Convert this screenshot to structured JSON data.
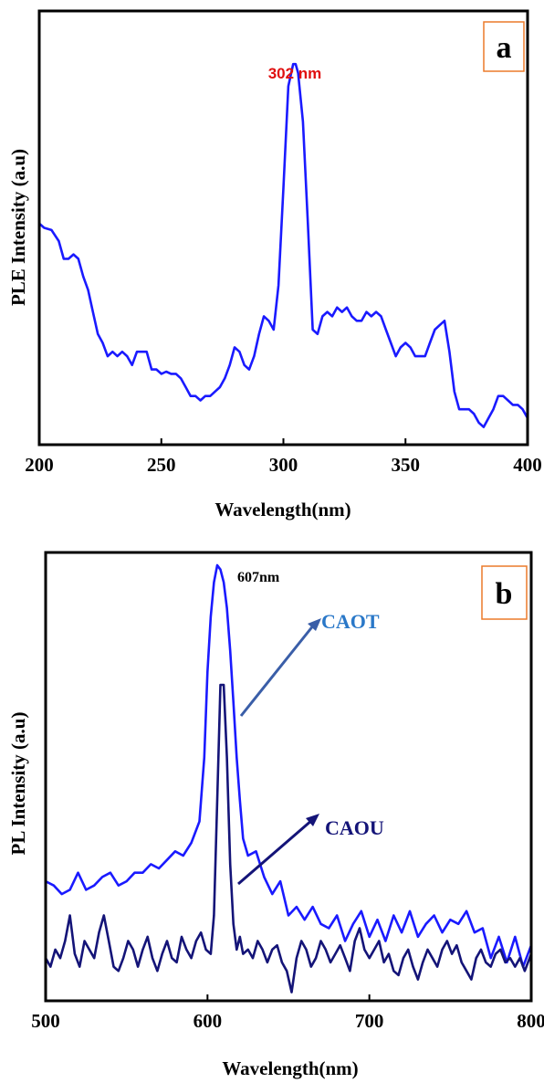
{
  "chart_data": [
    {
      "panel": "a",
      "type": "line",
      "xlabel": "Wavelength(nm)",
      "ylabel": "PLE Intensity (a.u)",
      "xlim": [
        200,
        400
      ],
      "ylim": [
        0,
        1
      ],
      "yticks_shown": false,
      "xticks": [
        200,
        250,
        300,
        350,
        400
      ],
      "annotation": {
        "text": "302 nm",
        "x": 305,
        "color": "#e01010"
      },
      "colors": {
        "line": "#1a1aff"
      },
      "series": [
        {
          "x": [
            200,
            202,
            205,
            208,
            210,
            212,
            214,
            216,
            218,
            220,
            222,
            224,
            226,
            228,
            230,
            232,
            234,
            236,
            238,
            240,
            242,
            244,
            246,
            248,
            250,
            252,
            254,
            256,
            258,
            260,
            262,
            264,
            266,
            268,
            270,
            272,
            274,
            276,
            278,
            280,
            282,
            284,
            286,
            288,
            290,
            292,
            294,
            296,
            298,
            300,
            302,
            304,
            305,
            306,
            308,
            310,
            312,
            314,
            316,
            318,
            320,
            322,
            324,
            326,
            328,
            330,
            332,
            334,
            336,
            338,
            340,
            342,
            344,
            346,
            348,
            350,
            352,
            354,
            356,
            358,
            360,
            362,
            364,
            366,
            368,
            370,
            372,
            374,
            376,
            378,
            380,
            382,
            384,
            386,
            388,
            390,
            392,
            394,
            396,
            398,
            400
          ],
          "values": [
            0.57,
            0.56,
            0.555,
            0.53,
            0.49,
            0.49,
            0.5,
            0.49,
            0.45,
            0.42,
            0.37,
            0.32,
            0.3,
            0.27,
            0.28,
            0.27,
            0.28,
            0.27,
            0.25,
            0.28,
            0.28,
            0.28,
            0.24,
            0.24,
            0.23,
            0.235,
            0.23,
            0.23,
            0.22,
            0.2,
            0.18,
            0.18,
            0.17,
            0.18,
            0.18,
            0.19,
            0.2,
            0.22,
            0.25,
            0.29,
            0.28,
            0.25,
            0.24,
            0.27,
            0.32,
            0.36,
            0.35,
            0.33,
            0.43,
            0.65,
            0.88,
            0.93,
            0.93,
            0.91,
            0.8,
            0.57,
            0.33,
            0.32,
            0.36,
            0.37,
            0.36,
            0.38,
            0.37,
            0.38,
            0.36,
            0.35,
            0.35,
            0.37,
            0.36,
            0.37,
            0.36,
            0.33,
            0.3,
            0.27,
            0.29,
            0.3,
            0.29,
            0.27,
            0.27,
            0.27,
            0.3,
            0.33,
            0.34,
            0.35,
            0.28,
            0.19,
            0.15,
            0.15,
            0.15,
            0.14,
            0.12,
            0.11,
            0.13,
            0.15,
            0.18,
            0.18,
            0.17,
            0.16,
            0.16,
            0.15,
            0.13
          ]
        }
      ]
    },
    {
      "panel": "b",
      "type": "line",
      "xlabel": "Wavelength(nm)",
      "ylabel": "PL Intensity (a.u)",
      "xlim": [
        500,
        800
      ],
      "ylim": [
        0,
        1
      ],
      "yticks_shown": false,
      "xticks": [
        500,
        600,
        700,
        800
      ],
      "annotation": {
        "text": "607nm",
        "x": 607
      },
      "colors": {
        "caot": "#1a1aff",
        "caou": "#141478",
        "caot_label": "#2a78c8",
        "caou_label": "#141478",
        "caot_arrow": "#3a5ea8",
        "caou_arrow": "#141478"
      },
      "series": [
        {
          "name": "CAOT",
          "x": [
            500,
            505,
            510,
            515,
            520,
            525,
            530,
            535,
            540,
            545,
            550,
            555,
            560,
            565,
            570,
            575,
            580,
            585,
            590,
            595,
            598,
            600,
            602,
            604,
            606,
            608,
            610,
            612,
            614,
            616,
            618,
            620,
            622,
            625,
            630,
            635,
            640,
            645,
            650,
            655,
            660,
            665,
            670,
            675,
            680,
            685,
            690,
            695,
            700,
            705,
            710,
            715,
            720,
            725,
            730,
            735,
            740,
            745,
            750,
            755,
            760,
            765,
            770,
            775,
            780,
            785,
            790,
            795,
            800
          ],
          "values": [
            0.26,
            0.25,
            0.23,
            0.24,
            0.28,
            0.24,
            0.25,
            0.27,
            0.28,
            0.25,
            0.26,
            0.28,
            0.28,
            0.3,
            0.29,
            0.31,
            0.33,
            0.32,
            0.35,
            0.4,
            0.55,
            0.75,
            0.88,
            0.96,
            1.0,
            0.99,
            0.96,
            0.9,
            0.8,
            0.68,
            0.55,
            0.45,
            0.36,
            0.32,
            0.33,
            0.27,
            0.23,
            0.26,
            0.18,
            0.2,
            0.17,
            0.2,
            0.16,
            0.15,
            0.18,
            0.12,
            0.16,
            0.19,
            0.13,
            0.17,
            0.12,
            0.18,
            0.14,
            0.19,
            0.13,
            0.16,
            0.18,
            0.14,
            0.17,
            0.16,
            0.19,
            0.14,
            0.15,
            0.08,
            0.13,
            0.07,
            0.13,
            0.06,
            0.11
          ]
        },
        {
          "name": "CAOU",
          "x": [
            500,
            503,
            506,
            509,
            512,
            515,
            518,
            521,
            524,
            527,
            530,
            533,
            536,
            539,
            542,
            545,
            548,
            551,
            554,
            557,
            560,
            563,
            566,
            569,
            572,
            575,
            578,
            581,
            584,
            587,
            590,
            593,
            596,
            599,
            602,
            604,
            606,
            608,
            610,
            612,
            614,
            616,
            618,
            620,
            622,
            625,
            628,
            631,
            634,
            637,
            640,
            643,
            646,
            649,
            652,
            655,
            658,
            661,
            664,
            667,
            670,
            673,
            676,
            679,
            682,
            685,
            688,
            691,
            694,
            697,
            700,
            703,
            706,
            709,
            712,
            715,
            718,
            721,
            724,
            727,
            730,
            733,
            736,
            739,
            742,
            745,
            748,
            751,
            754,
            757,
            760,
            763,
            766,
            769,
            772,
            775,
            778,
            781,
            784,
            787,
            790,
            793,
            796,
            800
          ],
          "values": [
            0.08,
            0.06,
            0.1,
            0.08,
            0.12,
            0.18,
            0.09,
            0.06,
            0.12,
            0.1,
            0.08,
            0.14,
            0.18,
            0.12,
            0.06,
            0.05,
            0.08,
            0.12,
            0.1,
            0.06,
            0.1,
            0.13,
            0.08,
            0.05,
            0.09,
            0.12,
            0.08,
            0.07,
            0.13,
            0.1,
            0.08,
            0.12,
            0.14,
            0.1,
            0.09,
            0.18,
            0.45,
            0.72,
            0.72,
            0.55,
            0.3,
            0.16,
            0.1,
            0.13,
            0.09,
            0.1,
            0.08,
            0.12,
            0.1,
            0.07,
            0.1,
            0.11,
            0.07,
            0.05,
            0.0,
            0.08,
            0.12,
            0.1,
            0.06,
            0.08,
            0.12,
            0.1,
            0.07,
            0.09,
            0.11,
            0.08,
            0.05,
            0.12,
            0.15,
            0.1,
            0.08,
            0.1,
            0.12,
            0.07,
            0.09,
            0.05,
            0.04,
            0.08,
            0.1,
            0.06,
            0.03,
            0.07,
            0.1,
            0.08,
            0.06,
            0.1,
            0.12,
            0.09,
            0.11,
            0.07,
            0.05,
            0.03,
            0.08,
            0.1,
            0.07,
            0.06,
            0.09,
            0.1,
            0.07,
            0.08,
            0.06,
            0.08,
            0.05,
            0.09
          ]
        }
      ]
    }
  ]
}
